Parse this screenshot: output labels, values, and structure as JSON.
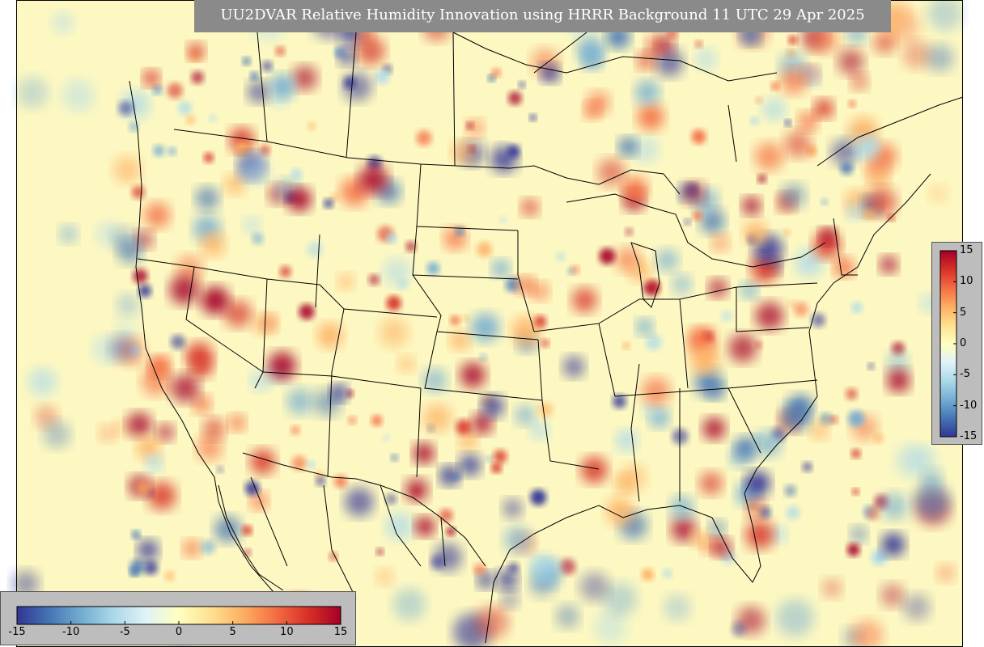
{
  "title": "UU2DVAR Relative Humidity Innovation using HRRR Background 11 UTC 29 Apr 2025",
  "colorbar": {
    "min": -15,
    "max": 15,
    "ticks": [
      "-15",
      "-10",
      "-5",
      "0",
      "5",
      "10",
      "15"
    ],
    "colors": [
      "#313695",
      "#4575b4",
      "#74add1",
      "#abd9e9",
      "#e0f3f8",
      "#ffffbf",
      "#fee090",
      "#fdae61",
      "#f46d43",
      "#d73027",
      "#a50026"
    ],
    "orientation_bottom": "horizontal",
    "orientation_right": "vertical"
  },
  "map": {
    "background_color": "#fdf8c2",
    "border_color": "#000000",
    "region": "Contiguous United States, southern Canada, northern Mexico"
  }
}
